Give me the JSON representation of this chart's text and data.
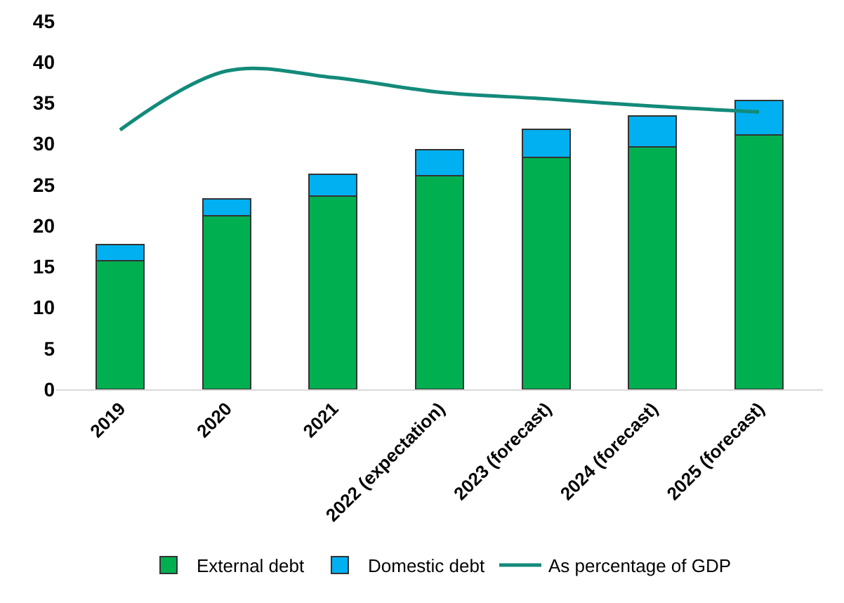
{
  "chart_data": {
    "type": "bar",
    "stacked": true,
    "categories": [
      "2019",
      "2020",
      "2021",
      "2022 (expectation)",
      "2023 (forecast)",
      "2024 (forecast)",
      "2025 (forecast)"
    ],
    "series": [
      {
        "name": "External debt",
        "color": "#00b050",
        "values": [
          15.7,
          21.2,
          23.6,
          26.1,
          28.3,
          29.6,
          31.1
        ]
      },
      {
        "name": "Domestic debt",
        "color": "#00b0f0",
        "values": [
          2.0,
          2.1,
          2.7,
          3.2,
          3.5,
          3.8,
          4.2
        ]
      },
      {
        "name": "As percentage of GDP",
        "type": "line",
        "color": "#138a7a",
        "values": [
          31.7,
          38.9,
          38.1,
          36.3,
          35.5,
          34.6,
          33.9
        ]
      }
    ],
    "ylim": [
      0,
      45
    ],
    "yticks": [
      0,
      5,
      10,
      15,
      20,
      25,
      30,
      35,
      40,
      45
    ],
    "grid": false,
    "legend": "bottom"
  }
}
